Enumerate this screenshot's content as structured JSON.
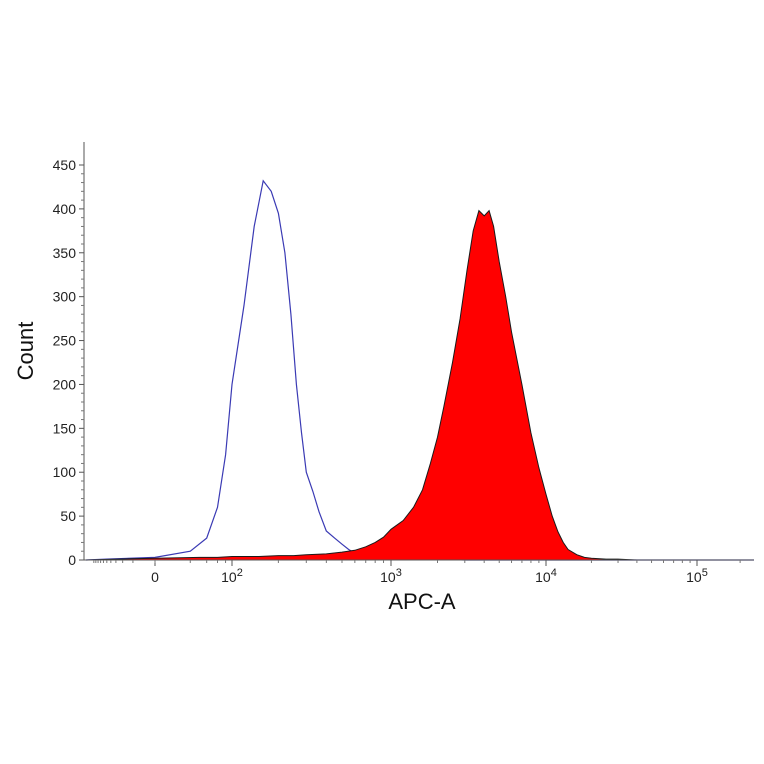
{
  "chart_data": {
    "type": "area",
    "title": "",
    "xlabel": "APC-A",
    "ylabel": "Count",
    "x_scale": "biexponential",
    "xlim": [
      -300,
      250000
    ],
    "ylim": [
      0,
      460
    ],
    "x_ticks": [
      {
        "value": 0,
        "base": "0",
        "exp": ""
      },
      {
        "value": 100,
        "base": "10",
        "exp": "2"
      },
      {
        "value": 1000,
        "base": "10",
        "exp": "3"
      },
      {
        "value": 10000,
        "base": "10",
        "exp": "4"
      },
      {
        "value": 100000,
        "base": "10",
        "exp": "5"
      }
    ],
    "y_ticks": [
      0,
      50,
      100,
      150,
      200,
      250,
      300,
      350,
      400,
      450
    ],
    "grid": false,
    "legend": "none",
    "series": [
      {
        "style": "outline",
        "color": "#3a3ab4",
        "x": [
          -300,
          -100,
          0,
          20,
          40,
          60,
          80,
          100,
          120,
          140,
          160,
          180,
          200,
          220,
          240,
          260,
          280,
          300,
          330,
          360,
          400,
          450,
          500,
          550,
          600,
          700,
          800,
          900,
          1000,
          1200,
          1500,
          2000,
          3000,
          5000,
          10000,
          20000,
          50000,
          100000,
          250000
        ],
        "y": [
          0,
          1,
          3,
          10,
          25,
          60,
          120,
          200,
          290,
          380,
          432,
          420,
          395,
          350,
          280,
          200,
          145,
          100,
          78,
          55,
          33,
          25,
          18,
          12,
          8,
          5,
          3,
          2,
          1,
          1,
          1,
          1,
          0,
          0,
          0,
          0,
          0,
          0,
          0
        ]
      },
      {
        "style": "filled",
        "color": "#ff0000",
        "x": [
          -300,
          0,
          30,
          60,
          100,
          150,
          200,
          250,
          300,
          400,
          500,
          600,
          700,
          800,
          900,
          1000,
          1200,
          1400,
          1600,
          1800,
          2000,
          2200,
          2500,
          2800,
          3100,
          3400,
          3700,
          4000,
          4300,
          4600,
          5000,
          5500,
          6000,
          7000,
          8000,
          9000,
          10000,
          11000,
          12000,
          13000,
          14000,
          16000,
          18000,
          20000,
          25000,
          30000,
          40000,
          100000,
          250000
        ],
        "y": [
          0,
          2,
          3,
          3,
          4,
          4,
          5,
          5,
          6,
          7,
          9,
          11,
          15,
          20,
          26,
          35,
          45,
          60,
          80,
          110,
          140,
          175,
          225,
          275,
          330,
          375,
          398,
          392,
          398,
          380,
          340,
          300,
          260,
          200,
          145,
          105,
          75,
          50,
          32,
          20,
          12,
          6,
          3,
          2,
          1,
          1,
          0,
          0,
          0
        ]
      }
    ]
  }
}
